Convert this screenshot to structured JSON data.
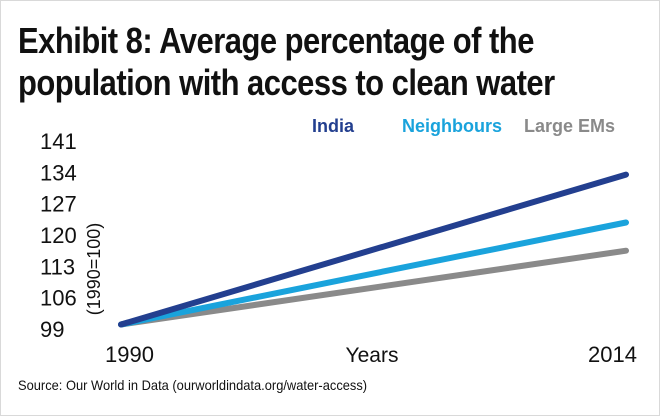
{
  "title": {
    "line1": "Exhibit 8: Average percentage of the",
    "line2": "population with access to clean water"
  },
  "source": "Source: Our World in Data (ourworldindata.org/water-access)",
  "chart_data": {
    "type": "line",
    "title": "Exhibit 8: Average percentage of the population with access to clean water",
    "xlabel": "Years",
    "ylabel": "(1990=100)",
    "x": [
      1990,
      2014
    ],
    "xticks": [
      "1990",
      "2014"
    ],
    "xlim": [
      1990,
      2014
    ],
    "ylim": [
      99,
      141
    ],
    "yticks": [
      99,
      106,
      113,
      120,
      127,
      134,
      141
    ],
    "grid": false,
    "legend": "top-right",
    "series": [
      {
        "name": "India",
        "color": "#233f8f",
        "values": [
          100,
          133.5
        ]
      },
      {
        "name": "Neighbours",
        "color": "#1aa3dc",
        "values": [
          100,
          122.8
        ]
      },
      {
        "name": "Large EMs",
        "color": "#8a8a8a",
        "values": [
          100,
          116.5
        ]
      }
    ]
  }
}
